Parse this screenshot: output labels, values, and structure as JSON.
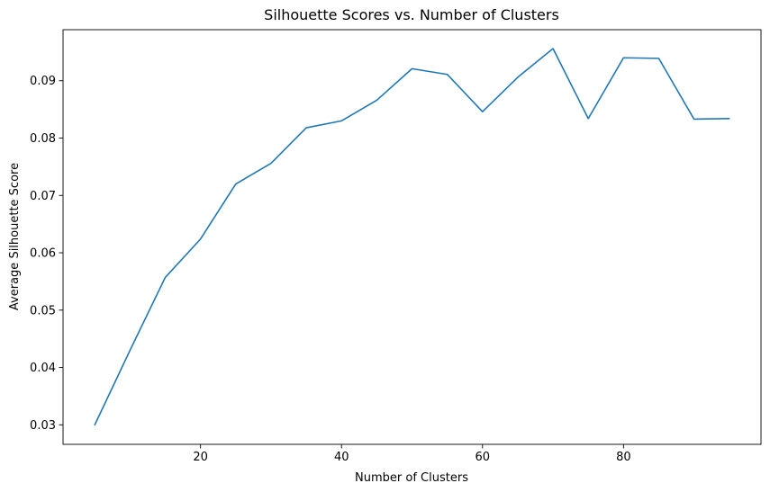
{
  "chart_data": {
    "type": "line",
    "title": "Silhouette Scores vs. Number of Clusters",
    "xlabel": "Number of Clusters",
    "ylabel": "Average Silhouette Score",
    "xlim": [
      0.5,
      99.5
    ],
    "ylim": [
      0.0266,
      0.0989
    ],
    "xticks": [
      20,
      40,
      60,
      80
    ],
    "xtick_labels": [
      "20",
      "40",
      "60",
      "80"
    ],
    "yticks": [
      0.03,
      0.04,
      0.05,
      0.06,
      0.07,
      0.08,
      0.09
    ],
    "ytick_labels": [
      "0.03",
      "0.04",
      "0.05",
      "0.06",
      "0.07",
      "0.08",
      "0.09"
    ],
    "grid": false,
    "legend": "none",
    "series": [
      {
        "color": "#1f77b4",
        "x": [
          5,
          10,
          15,
          20,
          25,
          30,
          35,
          40,
          45,
          50,
          55,
          60,
          65,
          70,
          75,
          80,
          85,
          90,
          95
        ],
        "values": [
          0.03,
          0.043,
          0.0557,
          0.0624,
          0.072,
          0.0756,
          0.0818,
          0.083,
          0.0866,
          0.0921,
          0.0911,
          0.0846,
          0.0906,
          0.0956,
          0.0834,
          0.094,
          0.0939,
          0.0833,
          0.0834
        ]
      }
    ]
  }
}
